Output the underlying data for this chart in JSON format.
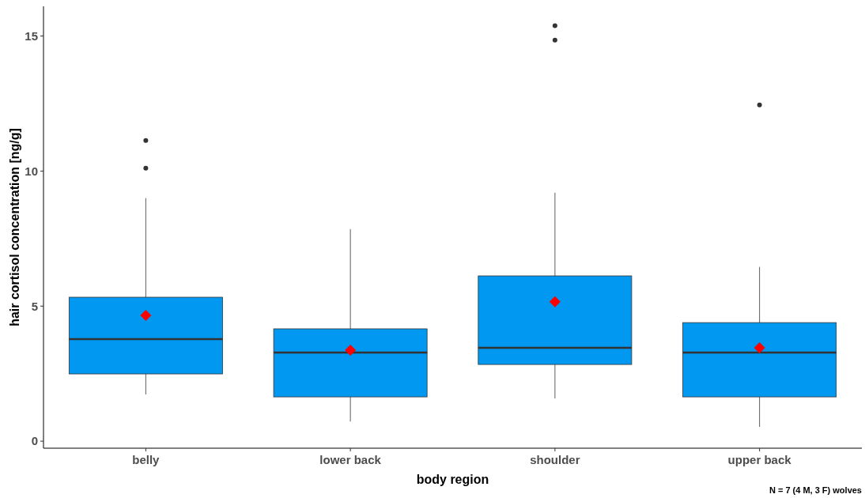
{
  "chart_data": {
    "type": "box",
    "xlabel": "body region",
    "ylabel": "hair cortisol concentration [ng/g]",
    "categories": [
      "belly",
      "lower back",
      "shoulder",
      "upper back"
    ],
    "series": [
      {
        "color": "#0098f0",
        "boxes": [
          {
            "low": 1.73,
            "q1": 2.49,
            "median": 3.78,
            "q3": 5.33,
            "high": 9.0,
            "mean": 4.66,
            "outliers": [
              10.11,
              11.13
            ]
          },
          {
            "low": 0.73,
            "q1": 1.64,
            "median": 3.28,
            "q3": 4.16,
            "high": 7.85,
            "mean": 3.37
          },
          {
            "low": 1.58,
            "q1": 2.84,
            "median": 3.46,
            "q3": 6.12,
            "high": 9.2,
            "mean": 5.16,
            "outliers": [
              14.85,
              15.38
            ]
          },
          {
            "low": 0.53,
            "q1": 1.64,
            "median": 3.28,
            "q3": 4.39,
            "high": 6.45,
            "mean": 3.46,
            "outliers": [
              12.45
            ]
          }
        ]
      }
    ],
    "ylim": [
      -0.26,
      16.1
    ],
    "yticks": [
      0,
      5,
      10,
      15
    ],
    "grid": false,
    "annotations": [
      "N = 7 (4 M, 3 F) wolves"
    ]
  }
}
